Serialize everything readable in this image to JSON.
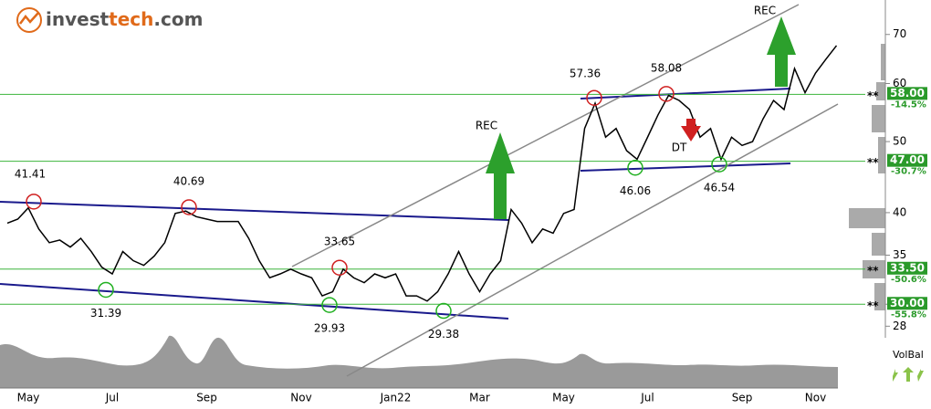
{
  "logo": [
    "invest",
    "tech",
    ".com"
  ],
  "chart_data": {
    "type": "line",
    "categories": [
      null,
      null,
      "May",
      null,
      null,
      null,
      null,
      null,
      null,
      null,
      "Jul",
      null,
      null,
      null,
      null,
      null,
      null,
      null,
      null,
      "Sep",
      null,
      null,
      null,
      null,
      null,
      null,
      null,
      null,
      "Nov",
      null,
      null,
      null,
      null,
      null,
      null,
      null,
      null,
      "Jan22",
      null,
      null,
      null,
      null,
      null,
      null,
      null,
      "Mar",
      null,
      null,
      null,
      null,
      null,
      null,
      null,
      "May",
      null,
      null,
      null,
      null,
      null,
      null,
      null,
      "Jul",
      null,
      null,
      null,
      null,
      null,
      null,
      null,
      null,
      "Sep",
      null,
      null,
      null,
      null,
      null,
      null,
      "Nov",
      null,
      null
    ],
    "series": [
      {
        "color": "#000000",
        "values": [
          38.7,
          39.2,
          40.6,
          38.0,
          36.4,
          36.7,
          35.9,
          36.9,
          35.4,
          33.7,
          33.0,
          35.4,
          34.4,
          33.9,
          34.9,
          36.4,
          39.9,
          40.2,
          39.5,
          39.2,
          38.9,
          38.9,
          38.9,
          36.9,
          34.4,
          32.6,
          33.0,
          33.5,
          33.0,
          32.6,
          30.8,
          31.2,
          33.5,
          32.6,
          32.1,
          33.0,
          32.6,
          33.0,
          30.8,
          30.8,
          30.3,
          31.2,
          33.0,
          35.4,
          33.0,
          31.2,
          33.0,
          34.4,
          40.4,
          38.7,
          36.4,
          38.0,
          37.5,
          39.9,
          40.4,
          52.1,
          56.4,
          50.7,
          52.1,
          48.6,
          47.3,
          50.7,
          54.4,
          57.8,
          56.9,
          55.3,
          50.7,
          52.1,
          47.3,
          50.7,
          49.4,
          50.0,
          53.7,
          56.9,
          55.3,
          62.9,
          58.3,
          62.0,
          64.8,
          67.6
        ]
      }
    ],
    "ylim": [
      27,
      78
    ],
    "yticks": [
      28,
      30,
      35,
      40,
      50,
      60,
      70
    ],
    "log_scale": true,
    "grid": false,
    "peaks": [
      41.41,
      40.69,
      33.65,
      57.36,
      58.08
    ],
    "troughs": [
      31.39,
      29.93,
      29.38,
      46.06,
      46.54
    ],
    "signals": [
      "REC",
      "REC",
      "DT"
    ],
    "level_marker": "**",
    "levels": [
      {
        "value": 58,
        "label": "58.00",
        "change": "-14.5%"
      },
      {
        "value": 47,
        "label": "47.00",
        "change": "-30.7%"
      },
      {
        "value": 33.5,
        "label": "33.50",
        "change": "-50.6%"
      },
      {
        "value": 30,
        "label": "30.00",
        "change": "-55.8%"
      }
    ],
    "volbal_label": "VolBal"
  }
}
